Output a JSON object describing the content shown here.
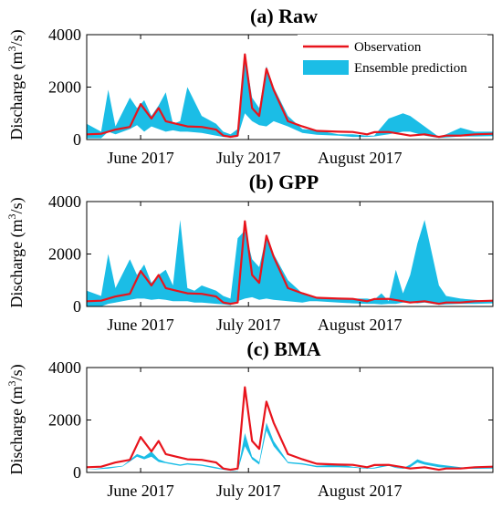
{
  "chart_data": [
    {
      "type": "area",
      "title": "(a) Raw",
      "ylabel_parts": [
        "Discharge (m",
        "3",
        "/s)"
      ],
      "ylim": [
        0,
        4000
      ],
      "yticks": [
        "0",
        "2000",
        "4000"
      ],
      "x_tick_labels": [
        "June 2017",
        "July 2017",
        "August 2017"
      ],
      "x_tick_days": [
        15,
        45,
        76
      ],
      "legend": {
        "position": "top-right",
        "entries": [
          "Observation",
          "Ensemble prediction"
        ]
      },
      "series": [
        {
          "name": "Observation",
          "kind": "line",
          "color": "#e8141c",
          "x": [
            0,
            4,
            8,
            12,
            15,
            18,
            20,
            22,
            25,
            28,
            32,
            36,
            38,
            40,
            42,
            44,
            46,
            48,
            50,
            52,
            56,
            60,
            64,
            70,
            74,
            78,
            80,
            84,
            88,
            90,
            94,
            98,
            100,
            104,
            108,
            113
          ],
          "values": [
            200,
            220,
            380,
            480,
            1350,
            800,
            1200,
            700,
            600,
            500,
            480,
            380,
            150,
            100,
            150,
            3250,
            1200,
            900,
            2700,
            1900,
            700,
            500,
            330,
            300,
            290,
            200,
            280,
            290,
            200,
            150,
            200,
            100,
            150,
            150,
            200,
            220
          ]
        },
        {
          "name": "Ensemble prediction",
          "kind": "band",
          "color": "#1bbde6",
          "x": [
            0,
            4,
            6,
            8,
            12,
            14,
            16,
            18,
            20,
            22,
            24,
            26,
            28,
            32,
            36,
            38,
            40,
            42,
            44,
            46,
            48,
            50,
            52,
            56,
            60,
            64,
            70,
            74,
            78,
            80,
            84,
            88,
            90,
            94,
            98,
            100,
            104,
            108,
            113
          ],
          "upper": [
            600,
            300,
            1900,
            500,
            1600,
            1200,
            1500,
            900,
            1300,
            1800,
            600,
            700,
            2000,
            900,
            600,
            300,
            200,
            400,
            3300,
            1600,
            1200,
            2800,
            2000,
            900,
            400,
            350,
            200,
            200,
            150,
            150,
            800,
            1000,
            900,
            500,
            100,
            200,
            450,
            300,
            300
          ],
          "lower": [
            50,
            50,
            300,
            200,
            400,
            550,
            300,
            500,
            400,
            300,
            350,
            300,
            300,
            250,
            150,
            100,
            80,
            100,
            1000,
            700,
            550,
            500,
            700,
            500,
            250,
            180,
            150,
            100,
            100,
            120,
            200,
            300,
            300,
            150,
            60,
            80,
            120,
            120,
            130
          ]
        }
      ]
    },
    {
      "type": "area",
      "title": "(b) GPP",
      "ylabel_parts": [
        "Discharge (m",
        "3",
        "/s)"
      ],
      "ylim": [
        0,
        4000
      ],
      "yticks": [
        "0",
        "2000",
        "4000"
      ],
      "x_tick_labels": [
        "June 2017",
        "July 2017",
        "August 2017"
      ],
      "x_tick_days": [
        15,
        45,
        76
      ],
      "series": [
        {
          "name": "Observation",
          "kind": "line",
          "color": "#e8141c",
          "x": [
            0,
            4,
            8,
            12,
            15,
            18,
            20,
            22,
            25,
            28,
            32,
            36,
            38,
            40,
            42,
            44,
            46,
            48,
            50,
            52,
            56,
            60,
            64,
            70,
            74,
            78,
            80,
            84,
            88,
            90,
            94,
            98,
            100,
            104,
            108,
            113
          ],
          "values": [
            200,
            220,
            380,
            480,
            1350,
            800,
            1200,
            700,
            600,
            500,
            480,
            380,
            150,
            100,
            150,
            3250,
            1200,
            900,
            2700,
            1900,
            700,
            500,
            330,
            300,
            290,
            200,
            280,
            290,
            200,
            150,
            200,
            100,
            150,
            150,
            200,
            220
          ]
        },
        {
          "name": "Ensemble prediction",
          "kind": "band",
          "color": "#1bbde6",
          "x": [
            0,
            4,
            6,
            8,
            12,
            14,
            16,
            18,
            20,
            22,
            24,
            26,
            28,
            30,
            32,
            36,
            38,
            40,
            42,
            44,
            46,
            48,
            50,
            52,
            56,
            60,
            62,
            64,
            70,
            74,
            78,
            80,
            82,
            84,
            86,
            88,
            90,
            92,
            94,
            98,
            100,
            104,
            108,
            113
          ],
          "upper": [
            600,
            400,
            2000,
            700,
            1800,
            1200,
            1600,
            900,
            1200,
            1400,
            800,
            3300,
            700,
            600,
            800,
            600,
            400,
            300,
            2600,
            2900,
            1800,
            1500,
            2700,
            2000,
            1000,
            500,
            400,
            350,
            300,
            300,
            300,
            250,
            500,
            200,
            1400,
            500,
            1200,
            2400,
            3300,
            800,
            400,
            300,
            250,
            200
          ],
          "lower": [
            0,
            0,
            100,
            150,
            250,
            300,
            300,
            250,
            280,
            250,
            200,
            200,
            200,
            150,
            150,
            100,
            80,
            50,
            200,
            300,
            350,
            250,
            300,
            250,
            200,
            150,
            200,
            200,
            150,
            120,
            100,
            100,
            80,
            100,
            100,
            150,
            150,
            120,
            150,
            60,
            80,
            100,
            100,
            120
          ]
        }
      ]
    },
    {
      "type": "area",
      "title": "(c) BMA",
      "ylabel_parts": [
        "Discharge (m",
        "3",
        "/s)"
      ],
      "ylim": [
        0,
        4000
      ],
      "yticks": [
        "0",
        "2000",
        "4000"
      ],
      "x_tick_labels": [
        "June 2017",
        "July 2017",
        "August 2017"
      ],
      "x_tick_days": [
        15,
        45,
        76
      ],
      "series": [
        {
          "name": "Observation",
          "kind": "line",
          "color": "#e8141c",
          "x": [
            0,
            4,
            8,
            12,
            15,
            18,
            20,
            22,
            25,
            28,
            32,
            36,
            38,
            40,
            42,
            44,
            46,
            48,
            50,
            52,
            56,
            60,
            64,
            70,
            74,
            78,
            80,
            84,
            88,
            90,
            94,
            98,
            100,
            104,
            108,
            113
          ],
          "values": [
            200,
            220,
            380,
            480,
            1350,
            800,
            1200,
            700,
            600,
            500,
            480,
            380,
            150,
            100,
            150,
            3250,
            1200,
            900,
            2700,
            1900,
            700,
            500,
            330,
            300,
            290,
            200,
            280,
            290,
            200,
            150,
            200,
            100,
            150,
            150,
            200,
            220
          ]
        },
        {
          "name": "Ensemble prediction",
          "kind": "band",
          "color": "#1bbde6",
          "x": [
            0,
            6,
            10,
            14,
            16,
            18,
            20,
            22,
            24,
            26,
            28,
            32,
            36,
            40,
            42,
            44,
            46,
            48,
            50,
            52,
            56,
            60,
            64,
            70,
            74,
            78,
            80,
            82,
            84,
            86,
            88,
            90,
            92,
            94,
            98,
            104,
            108,
            113
          ],
          "upper": [
            100,
            200,
            250,
            700,
            600,
            800,
            500,
            400,
            350,
            300,
            350,
            300,
            200,
            80,
            60,
            1500,
            600,
            400,
            1900,
            1200,
            400,
            350,
            250,
            300,
            220,
            160,
            180,
            250,
            300,
            200,
            160,
            300,
            500,
            400,
            300,
            200,
            180,
            200
          ],
          "lower": [
            100,
            150,
            230,
            600,
            500,
            600,
            400,
            350,
            300,
            250,
            300,
            250,
            150,
            60,
            50,
            1000,
            500,
            300,
            1600,
            1000,
            350,
            300,
            200,
            200,
            180,
            140,
            150,
            200,
            250,
            170,
            140,
            200,
            380,
            300,
            200,
            150,
            140,
            150
          ]
        }
      ]
    }
  ]
}
